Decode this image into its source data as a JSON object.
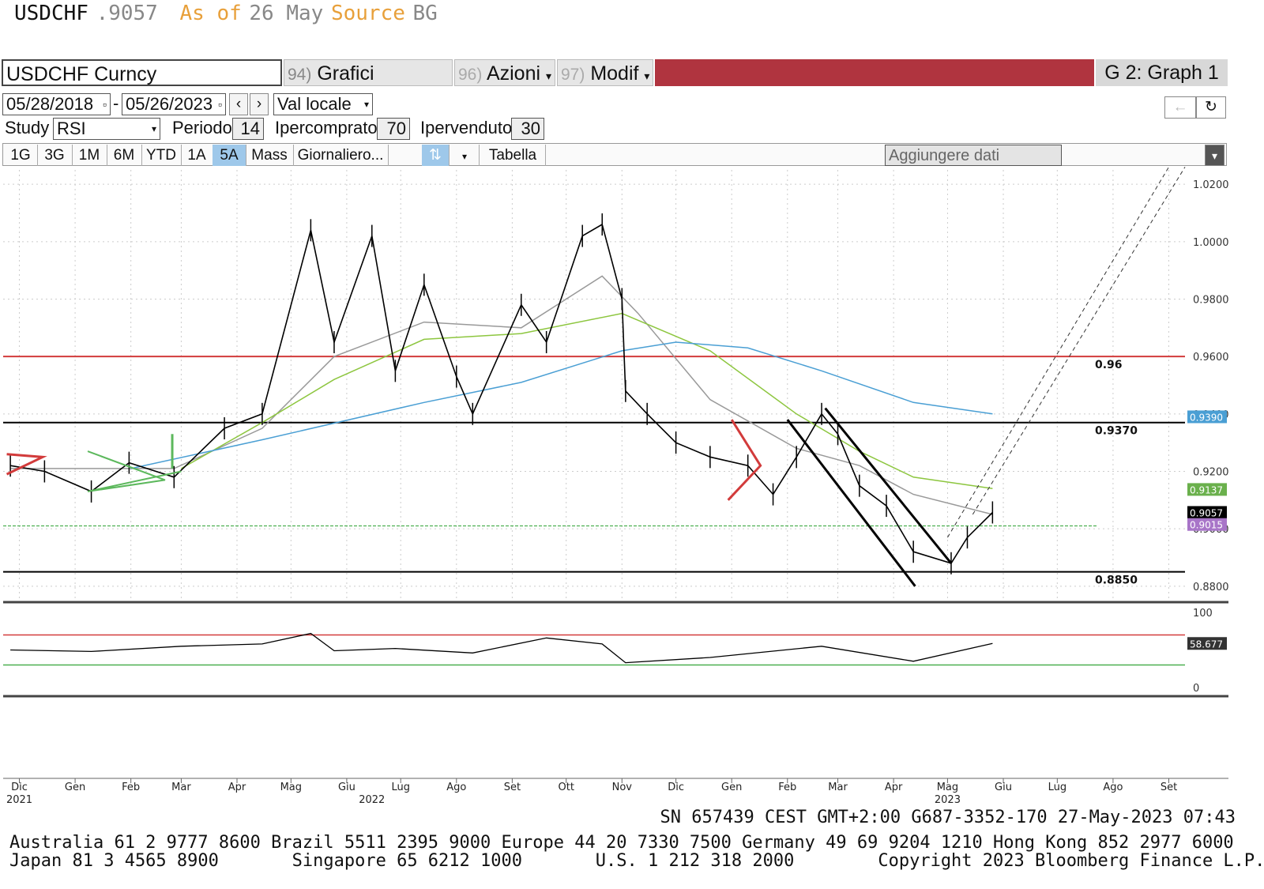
{
  "header": {
    "ticker": "USDCHF",
    "last": ".9057",
    "as_of_label": "As of",
    "date": "26 May",
    "source_label": "Source",
    "source": "BG"
  },
  "toolbar": {
    "security": "USDCHF Curncy",
    "menu1_num": "94)",
    "menu1": "Grafici suggeriti",
    "menu2_num": "96)",
    "menu2": "Azioni",
    "menu3_num": "97)",
    "menu3": "Modif",
    "graph_label": "G 2: Graph 1"
  },
  "controls": {
    "start_date": "05/28/2018",
    "end_date": "05/26/2023",
    "currency": "Val locale",
    "study_label": "Study",
    "study": "RSI",
    "period_label": "Periodo",
    "period": "14",
    "overbought_label": "Ipercomprato",
    "overbought": "70",
    "oversold_label": "Ipervenduto",
    "oversold": "30",
    "ranges": [
      "1G",
      "3G",
      "1M",
      "6M",
      "YTD",
      "1A",
      "5A",
      "Mass",
      "Giornaliero..."
    ],
    "active_range": "5A",
    "table_label": "Tabella",
    "add_data_placeholder": "Aggiungere dati"
  },
  "chart_data": {
    "type": "line",
    "series": [
      {
        "name": "",
        "x": [
          "2021-11-26",
          "2021-12-15",
          "2022-01-10",
          "2022-01-31",
          "2022-02-25",
          "2022-03-25",
          "2022-04-15",
          "2022-05-12",
          "2022-05-25",
          "2022-06-15",
          "2022-06-28",
          "2022-07-14",
          "2022-08-01",
          "2022-08-10",
          "2022-09-06",
          "2022-09-20",
          "2022-10-10",
          "2022-10-21",
          "2022-11-01",
          "2022-11-03",
          "2022-11-15",
          "2022-12-01",
          "2022-12-20",
          "2023-01-10",
          "2023-01-24",
          "2023-02-06",
          "2023-02-20",
          "2023-03-01",
          "2023-03-13",
          "2023-03-28",
          "2023-04-12",
          "2023-05-03",
          "2023-05-12",
          "2023-05-26"
        ],
        "values": [
          0.922,
          0.92,
          0.913,
          0.923,
          0.918,
          0.935,
          0.94,
          1.004,
          0.965,
          1.002,
          0.955,
          0.985,
          0.953,
          0.94,
          0.978,
          0.965,
          1.002,
          1.006,
          0.98,
          0.948,
          0.94,
          0.93,
          0.925,
          0.922,
          0.912,
          0.925,
          0.94,
          0.933,
          0.915,
          0.908,
          0.892,
          0.888,
          0.897,
          0.9057
        ]
      }
    ],
    "moving_averages": [
      {
        "color": "#999999",
        "x": [
          "2021-11-26",
          "2022-02-25",
          "2022-04-15",
          "2022-05-25",
          "2022-07-14",
          "2022-09-06",
          "2022-10-21",
          "2022-11-10",
          "2022-12-20",
          "2023-02-06",
          "2023-03-13",
          "2023-04-12",
          "2023-05-26"
        ],
        "values": [
          0.921,
          0.921,
          0.935,
          0.96,
          0.972,
          0.97,
          0.988,
          0.975,
          0.945,
          0.928,
          0.922,
          0.912,
          0.905
        ]
      },
      {
        "color": "#8dc63f",
        "x": [
          "2022-03-01",
          "2022-04-15",
          "2022-05-25",
          "2022-07-14",
          "2022-09-06",
          "2022-11-01",
          "2022-12-20",
          "2023-02-06",
          "2023-03-13",
          "2023-04-12",
          "2023-05-26"
        ],
        "values": [
          0.921,
          0.937,
          0.952,
          0.966,
          0.968,
          0.975,
          0.962,
          0.94,
          0.927,
          0.918,
          0.914
        ]
      },
      {
        "color": "#4a9fd4",
        "x": [
          "2022-02-01",
          "2022-04-15",
          "2022-07-14",
          "2022-09-06",
          "2022-11-01",
          "2022-12-01",
          "2023-01-10",
          "2023-02-20",
          "2023-04-12",
          "2023-05-26"
        ],
        "values": [
          0.921,
          0.931,
          0.944,
          0.951,
          0.962,
          0.965,
          0.963,
          0.955,
          0.944,
          0.94
        ]
      }
    ],
    "levels": [
      {
        "value": 0.96,
        "label": "0.96",
        "color": "#d23b3b"
      },
      {
        "value": 0.937,
        "label": "0.9370",
        "color": "#000000"
      },
      {
        "value": 0.901,
        "label": "",
        "color": "#4caf50"
      },
      {
        "value": 0.885,
        "label": "0.8850",
        "color": "#000000"
      }
    ],
    "price_tags": [
      {
        "value": 0.939,
        "label": "0.9390",
        "color": "#4a9fd4"
      },
      {
        "value": 0.9137,
        "label": "0.9137",
        "color": "#6ab04c"
      },
      {
        "value": 0.9057,
        "label": "0.9057",
        "color": "#000000"
      },
      {
        "value": 0.9015,
        "label": "0.9015",
        "color": "#a875c8"
      }
    ],
    "ylim": [
      0.875,
      1.025
    ],
    "y_ticks": [
      "1.0200",
      "1.0000",
      "0.9800",
      "0.9600",
      "0.9400",
      "0.9200",
      "0.9000",
      "0.8800"
    ],
    "x_ticks": [
      {
        "date": "2021-12-01",
        "label": "Dic"
      },
      {
        "date": "2022-01-01",
        "label": "Gen"
      },
      {
        "date": "2022-02-01",
        "label": "Feb"
      },
      {
        "date": "2022-03-01",
        "label": "Mar"
      },
      {
        "date": "2022-04-01",
        "label": "Apr"
      },
      {
        "date": "2022-05-01",
        "label": "Mag"
      },
      {
        "date": "2022-06-01",
        "label": "Giu"
      },
      {
        "date": "2022-07-01",
        "label": "Lug"
      },
      {
        "date": "2022-08-01",
        "label": "Ago"
      },
      {
        "date": "2022-09-01",
        "label": "Set"
      },
      {
        "date": "2022-10-01",
        "label": "Ott"
      },
      {
        "date": "2022-11-01",
        "label": "Nov"
      },
      {
        "date": "2022-12-01",
        "label": "Dic"
      },
      {
        "date": "2023-01-01",
        "label": "Gen"
      },
      {
        "date": "2023-02-01",
        "label": "Feb"
      },
      {
        "date": "2023-03-01",
        "label": "Mar"
      },
      {
        "date": "2023-04-01",
        "label": "Apr"
      },
      {
        "date": "2023-05-01",
        "label": "Mag"
      },
      {
        "date": "2023-06-01",
        "label": "Giu"
      },
      {
        "date": "2023-07-01",
        "label": "Lug"
      },
      {
        "date": "2023-08-01",
        "label": "Ago"
      },
      {
        "date": "2023-09-01",
        "label": "Set"
      }
    ],
    "year_labels": [
      {
        "date": "2021-12-01",
        "label": "2021"
      },
      {
        "date": "2022-06-15",
        "label": "2022"
      },
      {
        "date": "2023-05-01",
        "label": "2023"
      }
    ],
    "xlim": [
      "2021-11-22",
      "2023-09-10"
    ],
    "rsi": {
      "ylim": [
        0,
        100
      ],
      "ticks": [
        "100",
        "0"
      ],
      "last_label": "58.677",
      "overbought": 70,
      "oversold": 30,
      "x": [
        "2021-11-26",
        "2022-01-10",
        "2022-03-01",
        "2022-04-15",
        "2022-05-12",
        "2022-05-25",
        "2022-06-28",
        "2022-08-10",
        "2022-09-20",
        "2022-10-21",
        "2022-11-03",
        "2022-12-20",
        "2023-02-20",
        "2023-04-12",
        "2023-05-26"
      ],
      "values": [
        50,
        48,
        55,
        58,
        72,
        49,
        52,
        46,
        66,
        58,
        33,
        40,
        55,
        35,
        58.677
      ]
    }
  },
  "footer": {
    "meta": "SN 657439 CEST GMT+2:00 G687-3352-170 27-May-2023 07:43",
    "line1": "Australia 61 2 9777 8600 Brazil 5511 2395 9000 Europe 44 20 7330 7500 Germany 49 69 9204 1210 Hong Kong 852 2977 6000",
    "line2": "Japan 81 3 4565 8900       Singapore 65 6212 1000       U.S. 1 212 318 2000        Copyright 2023 Bloomberg Finance L.P."
  }
}
